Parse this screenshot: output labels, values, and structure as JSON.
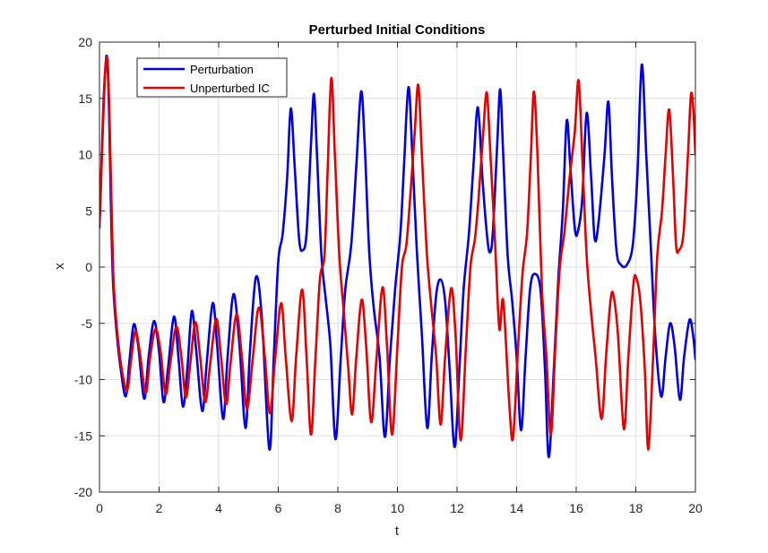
{
  "chart_data": {
    "type": "line",
    "title": "Perturbed Initial Conditions",
    "xlabel": "t",
    "ylabel": "x",
    "xlim": [
      0,
      20
    ],
    "ylim": [
      -20,
      20
    ],
    "xticks": [
      0,
      2,
      4,
      6,
      8,
      10,
      12,
      14,
      16,
      18,
      20
    ],
    "yticks": [
      -20,
      -15,
      -10,
      -5,
      0,
      5,
      10,
      15,
      20
    ],
    "xtick_labels": [
      "0",
      "2",
      "4",
      "6",
      "8",
      "10",
      "12",
      "14",
      "16",
      "18",
      "20"
    ],
    "ytick_labels": [
      "-20",
      "-15",
      "-10",
      "-5",
      "0",
      "5",
      "10",
      "15",
      "20"
    ],
    "grid": true,
    "legend_position": "top-left",
    "series": [
      {
        "name": "Perturbation",
        "color": "#0000e6",
        "points": [
          [
            0,
            3.5
          ],
          [
            0.05,
            7.5
          ],
          [
            0.12,
            13.5
          ],
          [
            0.2,
            17.8
          ],
          [
            0.26,
            18.5
          ],
          [
            0.32,
            14
          ],
          [
            0.38,
            6
          ],
          [
            0.45,
            -1
          ],
          [
            0.55,
            -5
          ],
          [
            0.7,
            -8.8
          ],
          [
            0.88,
            -11.5
          ],
          [
            1.0,
            -8.5
          ],
          [
            1.15,
            -5.1
          ],
          [
            1.3,
            -7
          ],
          [
            1.5,
            -11.7
          ],
          [
            1.65,
            -8
          ],
          [
            1.83,
            -4.8
          ],
          [
            2.0,
            -7.5
          ],
          [
            2.15,
            -12
          ],
          [
            2.3,
            -9
          ],
          [
            2.5,
            -4.4
          ],
          [
            2.65,
            -8
          ],
          [
            2.8,
            -12.4
          ],
          [
            2.95,
            -9
          ],
          [
            3.1,
            -3.9
          ],
          [
            3.25,
            -7.5
          ],
          [
            3.45,
            -12.8
          ],
          [
            3.6,
            -8.5
          ],
          [
            3.8,
            -3.2
          ],
          [
            3.95,
            -7
          ],
          [
            4.15,
            -13.5
          ],
          [
            4.3,
            -8
          ],
          [
            4.5,
            -2.4
          ],
          [
            4.7,
            -7
          ],
          [
            4.9,
            -14.3
          ],
          [
            5.05,
            -7.5
          ],
          [
            5.25,
            -0.9
          ],
          [
            5.45,
            -4.5
          ],
          [
            5.7,
            -16.2
          ],
          [
            5.85,
            -8
          ],
          [
            6.0,
            0.5
          ],
          [
            6.15,
            3
          ],
          [
            6.3,
            8
          ],
          [
            6.42,
            14.1
          ],
          [
            6.55,
            9
          ],
          [
            6.7,
            2.5
          ],
          [
            6.82,
            1.5
          ],
          [
            6.95,
            3
          ],
          [
            7.1,
            11
          ],
          [
            7.2,
            15.4
          ],
          [
            7.3,
            10
          ],
          [
            7.45,
            1
          ],
          [
            7.6,
            -3
          ],
          [
            7.75,
            -7
          ],
          [
            7.92,
            -15.3
          ],
          [
            8.1,
            -8
          ],
          [
            8.25,
            -2
          ],
          [
            8.45,
            2
          ],
          [
            8.62,
            9
          ],
          [
            8.78,
            15.6
          ],
          [
            8.9,
            11
          ],
          [
            9.05,
            1.5
          ],
          [
            9.2,
            -3.5
          ],
          [
            9.4,
            -8
          ],
          [
            9.58,
            -15.1
          ],
          [
            9.75,
            -8
          ],
          [
            9.92,
            -2
          ],
          [
            10.1,
            3
          ],
          [
            10.22,
            9
          ],
          [
            10.37,
            16
          ],
          [
            10.5,
            10
          ],
          [
            10.65,
            1.5
          ],
          [
            10.82,
            -6
          ],
          [
            11.0,
            -14.3
          ],
          [
            11.15,
            -8
          ],
          [
            11.3,
            -2.5
          ],
          [
            11.45,
            -1.1
          ],
          [
            11.6,
            -3
          ],
          [
            11.75,
            -9
          ],
          [
            11.92,
            -16
          ],
          [
            12.08,
            -9
          ],
          [
            12.22,
            -2
          ],
          [
            12.4,
            3
          ],
          [
            12.55,
            9
          ],
          [
            12.7,
            14.2
          ],
          [
            12.85,
            8
          ],
          [
            13.0,
            3
          ],
          [
            13.1,
            1.3
          ],
          [
            13.2,
            3
          ],
          [
            13.35,
            11
          ],
          [
            13.45,
            15.8
          ],
          [
            13.55,
            10
          ],
          [
            13.7,
            1
          ],
          [
            13.85,
            -3
          ],
          [
            14.0,
            -8
          ],
          [
            14.15,
            -14.5
          ],
          [
            14.3,
            -8
          ],
          [
            14.45,
            -2
          ],
          [
            14.6,
            -0.6
          ],
          [
            14.8,
            -2
          ],
          [
            14.95,
            -9
          ],
          [
            15.08,
            -16.9
          ],
          [
            15.25,
            -9
          ],
          [
            15.4,
            -1
          ],
          [
            15.55,
            5
          ],
          [
            15.68,
            13
          ],
          [
            15.8,
            9
          ],
          [
            15.95,
            3.5
          ],
          [
            16.05,
            3.1
          ],
          [
            16.2,
            6
          ],
          [
            16.35,
            13.7
          ],
          [
            16.5,
            8
          ],
          [
            16.62,
            2.5
          ],
          [
            16.75,
            4
          ],
          [
            16.95,
            10
          ],
          [
            17.08,
            14.7
          ],
          [
            17.2,
            8
          ],
          [
            17.35,
            1.5
          ],
          [
            17.5,
            0.2
          ],
          [
            17.7,
            0.2
          ],
          [
            17.9,
            2
          ],
          [
            18.05,
            8
          ],
          [
            18.2,
            18
          ],
          [
            18.35,
            10
          ],
          [
            18.5,
            2
          ],
          [
            18.65,
            -6
          ],
          [
            18.85,
            -11.5
          ],
          [
            19.0,
            -8
          ],
          [
            19.15,
            -5
          ],
          [
            19.3,
            -7
          ],
          [
            19.48,
            -11.8
          ],
          [
            19.62,
            -8
          ],
          [
            19.8,
            -4.7
          ],
          [
            19.92,
            -6
          ],
          [
            20.0,
            -8.2
          ]
        ]
      },
      {
        "name": "Unperturbed IC",
        "color": "#e60000",
        "points": [
          [
            0,
            3.8
          ],
          [
            0.05,
            7.5
          ],
          [
            0.13,
            13.5
          ],
          [
            0.2,
            17.6
          ],
          [
            0.27,
            18.4
          ],
          [
            0.33,
            14
          ],
          [
            0.4,
            6
          ],
          [
            0.47,
            -1
          ],
          [
            0.57,
            -5
          ],
          [
            0.72,
            -8.6
          ],
          [
            0.92,
            -11
          ],
          [
            1.05,
            -8.5
          ],
          [
            1.2,
            -5.7
          ],
          [
            1.35,
            -7.5
          ],
          [
            1.55,
            -11.2
          ],
          [
            1.7,
            -8
          ],
          [
            1.88,
            -5.5
          ],
          [
            2.05,
            -7.5
          ],
          [
            2.22,
            -11.3
          ],
          [
            2.38,
            -8.5
          ],
          [
            2.58,
            -5.3
          ],
          [
            2.75,
            -8
          ],
          [
            2.9,
            -11.6
          ],
          [
            3.05,
            -8.5
          ],
          [
            3.22,
            -4.9
          ],
          [
            3.38,
            -8
          ],
          [
            3.55,
            -12
          ],
          [
            3.72,
            -8.5
          ],
          [
            3.92,
            -4.6
          ],
          [
            4.08,
            -8
          ],
          [
            4.25,
            -12.2
          ],
          [
            4.4,
            -8.5
          ],
          [
            4.6,
            -4.2
          ],
          [
            4.78,
            -8
          ],
          [
            4.95,
            -12.6
          ],
          [
            5.15,
            -8
          ],
          [
            5.35,
            -3.6
          ],
          [
            5.55,
            -8
          ],
          [
            5.72,
            -13
          ],
          [
            5.9,
            -8
          ],
          [
            6.1,
            -3.2
          ],
          [
            6.25,
            -8
          ],
          [
            6.45,
            -13.7
          ],
          [
            6.6,
            -8
          ],
          [
            6.8,
            -2
          ],
          [
            6.95,
            -8
          ],
          [
            7.1,
            -14.9
          ],
          [
            7.25,
            -8
          ],
          [
            7.4,
            -1
          ],
          [
            7.55,
            1
          ],
          [
            7.65,
            8
          ],
          [
            7.78,
            16.8
          ],
          [
            7.9,
            10
          ],
          [
            8.05,
            1
          ],
          [
            8.2,
            -4
          ],
          [
            8.35,
            -9
          ],
          [
            8.48,
            -13.1
          ],
          [
            8.62,
            -8
          ],
          [
            8.8,
            -2.9
          ],
          [
            8.95,
            -7
          ],
          [
            9.12,
            -13.8
          ],
          [
            9.3,
            -8
          ],
          [
            9.5,
            -1.8
          ],
          [
            9.65,
            -7
          ],
          [
            9.82,
            -14.9
          ],
          [
            10.0,
            -7
          ],
          [
            10.15,
            0
          ],
          [
            10.3,
            2
          ],
          [
            10.45,
            7
          ],
          [
            10.58,
            12
          ],
          [
            10.7,
            16.2
          ],
          [
            10.82,
            10
          ],
          [
            10.98,
            1.5
          ],
          [
            11.12,
            -3
          ],
          [
            11.3,
            -8
          ],
          [
            11.45,
            -14
          ],
          [
            11.6,
            -8
          ],
          [
            11.8,
            -1.9
          ],
          [
            11.95,
            -6
          ],
          [
            12.12,
            -15.4
          ],
          [
            12.3,
            -7
          ],
          [
            12.45,
            0
          ],
          [
            12.6,
            2.5
          ],
          [
            12.72,
            6
          ],
          [
            12.88,
            12
          ],
          [
            13.0,
            15.5
          ],
          [
            13.12,
            10
          ],
          [
            13.28,
            2
          ],
          [
            13.42,
            -5.5
          ],
          [
            13.55,
            -3
          ],
          [
            13.75,
            -12
          ],
          [
            13.88,
            -15.2
          ],
          [
            14.05,
            -7
          ],
          [
            14.2,
            -0.5
          ],
          [
            14.35,
            3
          ],
          [
            14.48,
            10
          ],
          [
            14.58,
            15.6
          ],
          [
            14.7,
            10
          ],
          [
            14.85,
            -2
          ],
          [
            15.0,
            -8
          ],
          [
            15.15,
            -14.9
          ],
          [
            15.3,
            -7
          ],
          [
            15.45,
            0
          ],
          [
            15.6,
            3
          ],
          [
            15.78,
            8
          ],
          [
            15.95,
            12
          ],
          [
            16.08,
            16.6
          ],
          [
            16.2,
            10
          ],
          [
            16.35,
            1
          ],
          [
            16.5,
            -4
          ],
          [
            16.65,
            -8
          ],
          [
            16.85,
            -13.5
          ],
          [
            17.0,
            -8
          ],
          [
            17.15,
            -3
          ],
          [
            17.25,
            -2.5
          ],
          [
            17.4,
            -6
          ],
          [
            17.6,
            -14.4
          ],
          [
            17.75,
            -8
          ],
          [
            17.92,
            -1.5
          ],
          [
            18.02,
            -1
          ],
          [
            18.15,
            -3
          ],
          [
            18.3,
            -9
          ],
          [
            18.42,
            -16.2
          ],
          [
            18.58,
            -8
          ],
          [
            18.72,
            1
          ],
          [
            18.88,
            5
          ],
          [
            19.0,
            10
          ],
          [
            19.12,
            14
          ],
          [
            19.25,
            8
          ],
          [
            19.35,
            2
          ],
          [
            19.45,
            1.5
          ],
          [
            19.6,
            3
          ],
          [
            19.75,
            10
          ],
          [
            19.85,
            15.3
          ],
          [
            19.93,
            14
          ],
          [
            20.0,
            10
          ]
        ]
      }
    ]
  }
}
